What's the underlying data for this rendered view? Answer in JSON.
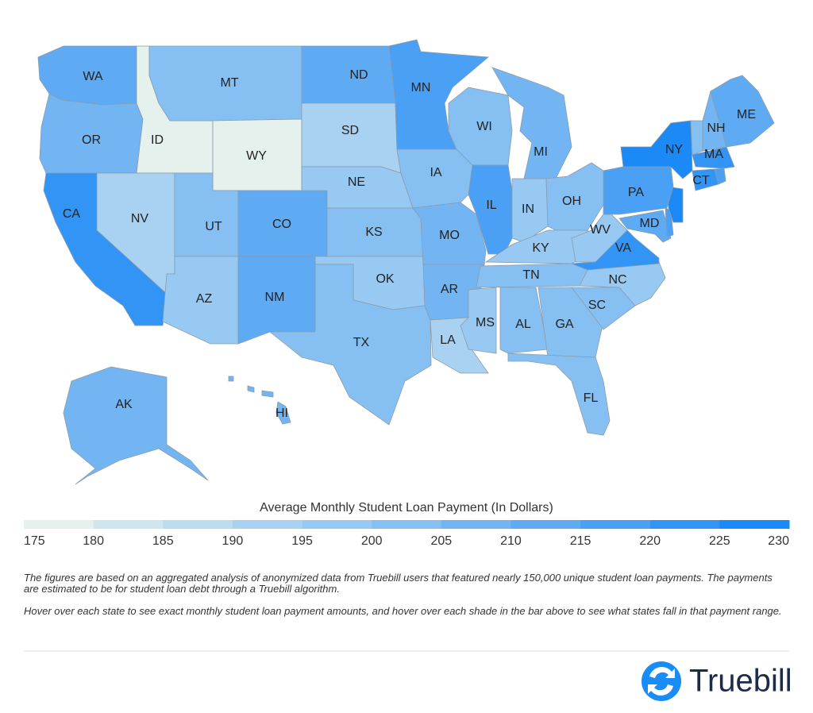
{
  "chart_data": {
    "type": "choropleth",
    "states": [
      {
        "code": "WA",
        "value": 210
      },
      {
        "code": "OR",
        "value": 209
      },
      {
        "code": "CA",
        "value": 224
      },
      {
        "code": "ID",
        "value": 177
      },
      {
        "code": "NV",
        "value": 193
      },
      {
        "code": "MT",
        "value": 200
      },
      {
        "code": "WY",
        "value": 178
      },
      {
        "code": "UT",
        "value": 204
      },
      {
        "code": "AZ",
        "value": 198
      },
      {
        "code": "CO",
        "value": 211
      },
      {
        "code": "NM",
        "value": 212
      },
      {
        "code": "ND",
        "value": 210
      },
      {
        "code": "SD",
        "value": 193
      },
      {
        "code": "NE",
        "value": 199
      },
      {
        "code": "KS",
        "value": 201
      },
      {
        "code": "OK",
        "value": 199
      },
      {
        "code": "TX",
        "value": 202
      },
      {
        "code": "MN",
        "value": 217
      },
      {
        "code": "IA",
        "value": 204
      },
      {
        "code": "MO",
        "value": 208
      },
      {
        "code": "AR",
        "value": 206
      },
      {
        "code": "LA",
        "value": 192
      },
      {
        "code": "WI",
        "value": 201
      },
      {
        "code": "MI",
        "value": 205
      },
      {
        "code": "IL",
        "value": 219
      },
      {
        "code": "IN",
        "value": 199
      },
      {
        "code": "OH",
        "value": 203
      },
      {
        "code": "KY",
        "value": 199
      },
      {
        "code": "TN",
        "value": 203
      },
      {
        "code": "MS",
        "value": 198
      },
      {
        "code": "AL",
        "value": 204
      },
      {
        "code": "GA",
        "value": 204
      },
      {
        "code": "FL",
        "value": 200
      },
      {
        "code": "SC",
        "value": 203
      },
      {
        "code": "NC",
        "value": 197
      },
      {
        "code": "WV",
        "value": 198
      },
      {
        "code": "VA",
        "value": 221
      },
      {
        "code": "MD",
        "value": 214
      },
      {
        "code": null,
        "value": 215
      },
      {
        "code": null,
        "value": 227
      },
      {
        "code": "PA",
        "value": 218
      },
      {
        "code": "NY",
        "value": 226
      },
      {
        "code": null,
        "value": 200
      },
      {
        "code": "NH",
        "value": 205
      },
      {
        "code": "MA",
        "value": 223
      },
      {
        "code": "CT",
        "value": 222
      },
      {
        "code": null,
        "value": 215
      },
      {
        "code": "ME",
        "value": 212
      },
      {
        "code": "AK",
        "value": 207
      },
      {
        "code": "HI",
        "value": 207
      }
    ],
    "legend": {
      "title": "Average Monthly Student Loan Payment (In Dollars)",
      "ticks": [
        175,
        180,
        185,
        190,
        195,
        200,
        205,
        210,
        215,
        220,
        225,
        230
      ],
      "colors": [
        "#e4f1ec",
        "#cfe6ee",
        "#bcdcf0",
        "#a9d2f2",
        "#97c9f2",
        "#86c0f2",
        "#72b5f2",
        "#5eaaf3",
        "#4aa0f4",
        "#3295f5",
        "#1b8af6"
      ]
    }
  },
  "notes": [
    "The figures are based on an aggregated analysis of anonymized data from Truebill users that featured nearly 150,000 unique student loan payments. The payments are estimated to be for student loan debt through a Truebill algorithm.",
    "Hover over each state to see exact monthly student loan payment amounts, and hover over each shade in the bar above to see what states fall in that payment range."
  ],
  "brand": "Truebill"
}
